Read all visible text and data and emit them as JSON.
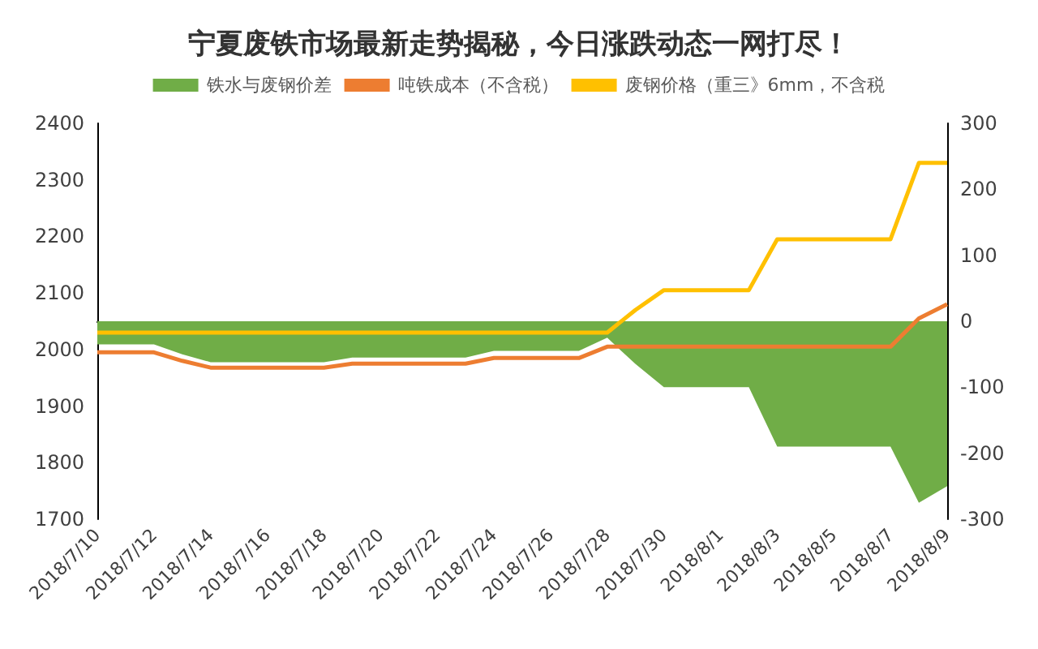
{
  "chart_data": {
    "type": "line",
    "title": "宁夏废铁市场最新走势揭秘，今日涨跌动态一网打尽！",
    "categories": [
      "2018/7/10",
      null,
      "2018/7/12",
      null,
      "2018/7/14",
      null,
      "2018/7/16",
      null,
      "2018/7/18",
      null,
      "2018/7/20",
      null,
      "2018/7/22",
      null,
      "2018/7/24",
      null,
      "2018/7/26",
      null,
      "2018/7/28",
      null,
      "2018/7/30",
      null,
      "2018/8/1",
      null,
      "2018/8/3",
      null,
      "2018/8/5",
      null,
      "2018/8/7",
      null,
      "2018/8/9"
    ],
    "series": [
      {
        "name": "铁水与废钢价差",
        "type": "area",
        "axis": "y2",
        "color": "#70ad47",
        "values": [
          -35,
          -35,
          -35,
          -50,
          -62,
          -62,
          -62,
          -62,
          -62,
          -55,
          -55,
          -55,
          -55,
          -55,
          -45,
          -45,
          -45,
          -45,
          -25,
          -65,
          -100,
          -100,
          -100,
          -100,
          -190,
          -190,
          -190,
          -190,
          -190,
          -275,
          -250
        ]
      },
      {
        "name": "吨铁成本（不含税）",
        "color": "#ed7d31",
        "values": [
          1995,
          1995,
          1995,
          1980,
          1968,
          1968,
          1968,
          1968,
          1968,
          1975,
          1975,
          1975,
          1975,
          1975,
          1985,
          1985,
          1985,
          1985,
          2005,
          2005,
          2005,
          2005,
          2005,
          2005,
          2005,
          2005,
          2005,
          2005,
          2005,
          2055,
          2080
        ]
      },
      {
        "name": "废钢价格（重三》6mm，不含税",
        "color": "#ffc000",
        "values": [
          2030,
          2030,
          2030,
          2030,
          2030,
          2030,
          2030,
          2030,
          2030,
          2030,
          2030,
          2030,
          2030,
          2030,
          2030,
          2030,
          2030,
          2030,
          2030,
          2070,
          2105,
          2105,
          2105,
          2105,
          2195,
          2195,
          2195,
          2195,
          2195,
          2330,
          2330
        ]
      }
    ],
    "ylim": [
      1700,
      2400
    ],
    "yticks": [
      1700,
      1800,
      1900,
      2000,
      2100,
      2200,
      2300,
      2400
    ],
    "y2lim": [
      -300,
      300
    ],
    "y2ticks": [
      -300,
      -200,
      -100,
      0,
      100,
      200,
      300
    ],
    "legend": "top",
    "marker": "none"
  }
}
